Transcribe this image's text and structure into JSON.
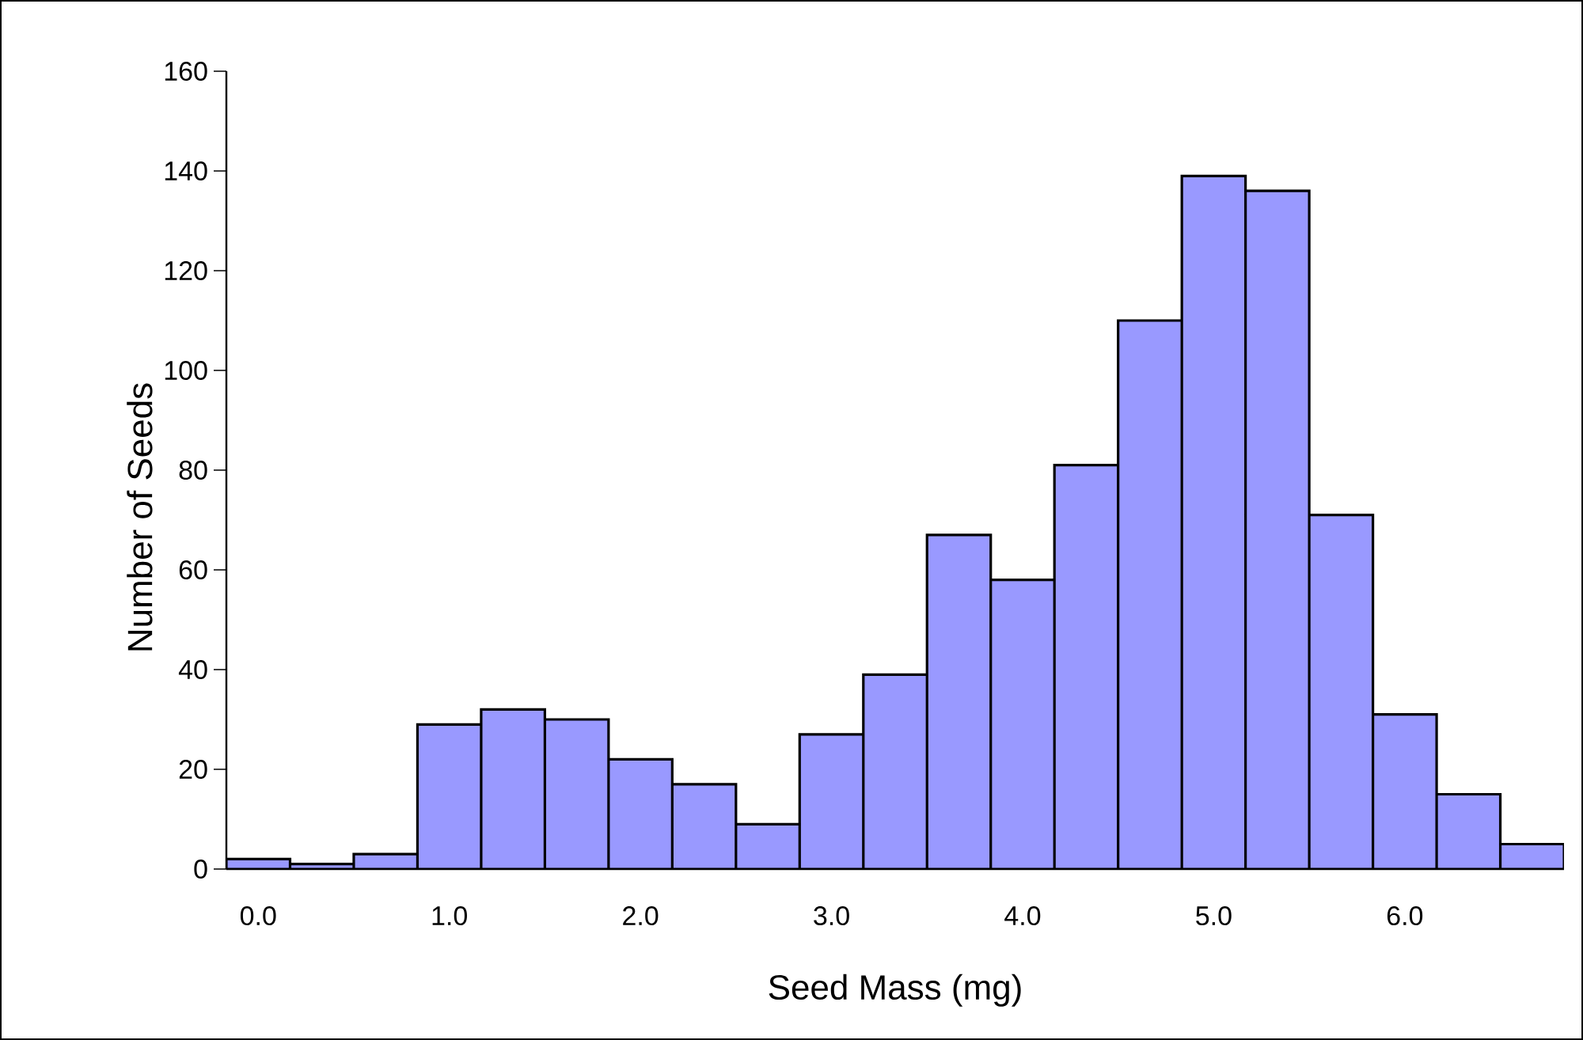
{
  "chart_data": {
    "type": "bar",
    "xlabel": "Seed Mass (mg)",
    "ylabel": "Number of Seeds",
    "categories": [
      "0.0",
      null,
      null,
      "1.0",
      null,
      null,
      "2.0",
      null,
      null,
      "3.0",
      null,
      null,
      "4.0",
      null,
      null,
      "5.0",
      null,
      null,
      "6.0",
      null,
      null
    ],
    "values": [
      2,
      1,
      3,
      29,
      32,
      30,
      22,
      17,
      9,
      27,
      39,
      67,
      58,
      81,
      110,
      139,
      136,
      71,
      31,
      15,
      5
    ],
    "color": "#9999ff",
    "ylim": [
      0,
      160
    ],
    "yticks": [
      0,
      20,
      40,
      60,
      80,
      100,
      120,
      140,
      160
    ],
    "grid": false
  }
}
